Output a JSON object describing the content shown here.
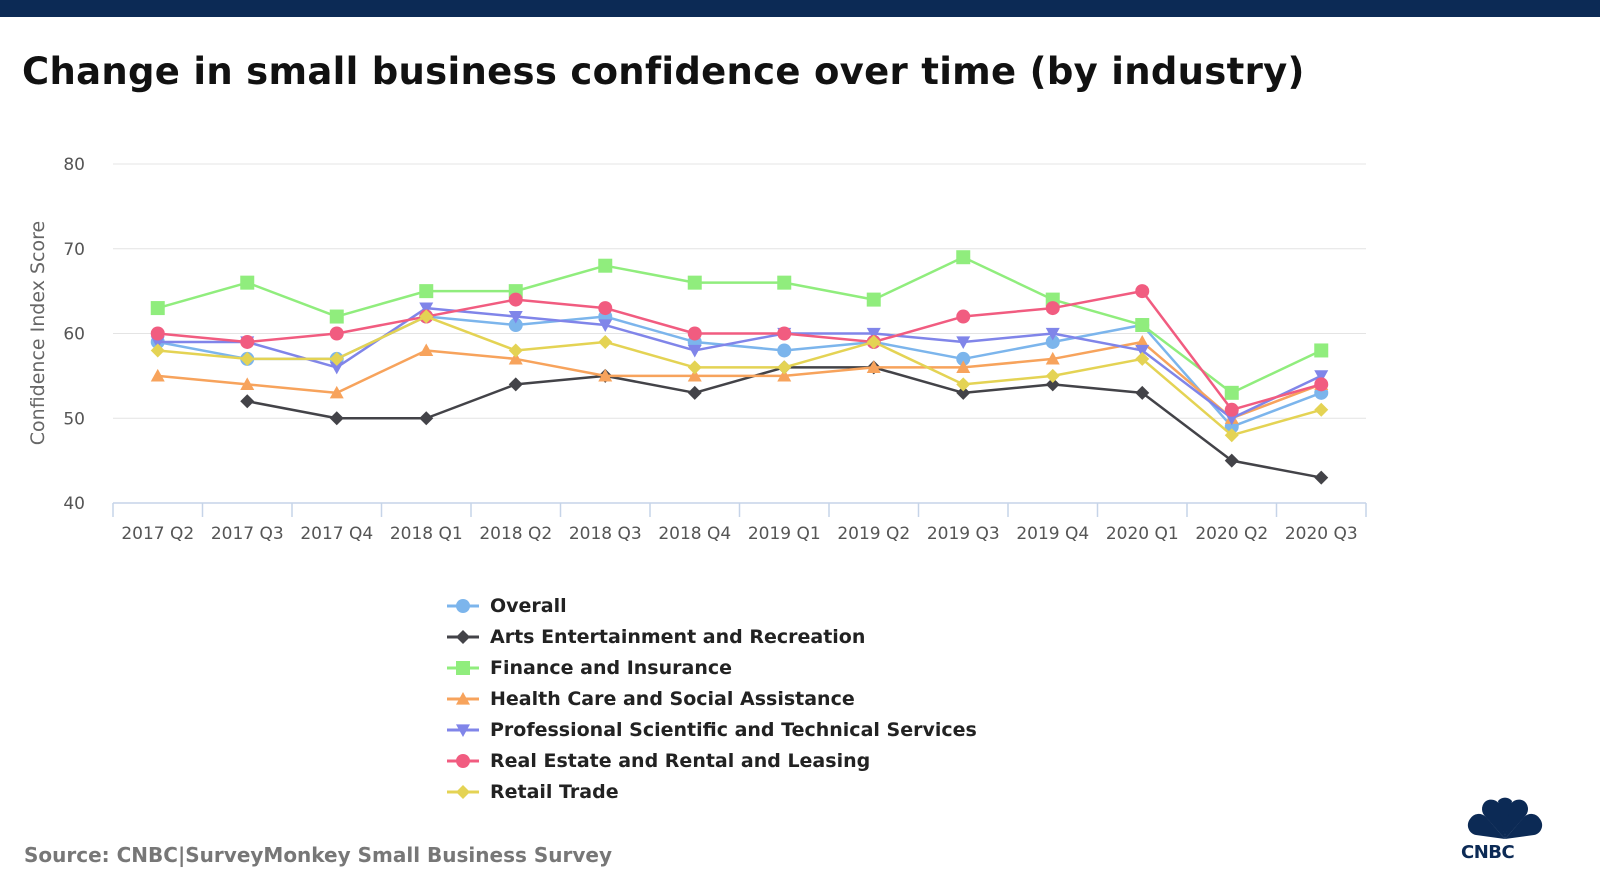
{
  "page": {
    "title": "Change in small business confidence over time (by industry)",
    "source": "Source: CNBC|SurveyMonkey Small Business Survey",
    "brand": {
      "logo_text": "CNBC",
      "color": "#0c2a55"
    }
  },
  "chart_data": {
    "type": "line",
    "title": "Change in small business confidence over time (by industry)",
    "xlabel": "",
    "ylabel": "Confidence Index Score",
    "ylim": [
      40,
      80
    ],
    "yticks": [
      "40",
      "50",
      "60",
      "70",
      "80"
    ],
    "grid": true,
    "legend_position": "bottom",
    "categories": [
      "2017 Q2",
      "2017 Q3",
      "2017 Q4",
      "2018 Q1",
      "2018 Q2",
      "2018 Q3",
      "2018 Q4",
      "2019 Q1",
      "2019 Q2",
      "2019 Q3",
      "2019 Q4",
      "2020 Q1",
      "2020 Q2",
      "2020 Q3"
    ],
    "series": [
      {
        "name": "Overall",
        "color": "#7cb5ec",
        "marker": "circle",
        "values": [
          59,
          57,
          57,
          62,
          61,
          62,
          59,
          58,
          59,
          57,
          59,
          61,
          49,
          53
        ]
      },
      {
        "name": "Arts Entertainment and Recreation",
        "color": "#434348",
        "marker": "diamond",
        "values": [
          null,
          52,
          50,
          50,
          54,
          55,
          53,
          56,
          56,
          53,
          54,
          53,
          45,
          43
        ]
      },
      {
        "name": "Finance and Insurance",
        "color": "#90ed7d",
        "marker": "square",
        "values": [
          63,
          66,
          62,
          65,
          65,
          68,
          66,
          66,
          64,
          69,
          64,
          61,
          53,
          58
        ]
      },
      {
        "name": "Health Care and Social Assistance",
        "color": "#f7a35c",
        "marker": "triangle",
        "values": [
          55,
          54,
          53,
          58,
          57,
          55,
          55,
          55,
          56,
          56,
          57,
          59,
          50,
          54
        ]
      },
      {
        "name": "Professional Scientific and Technical Services",
        "color": "#8085e9",
        "marker": "triangle-down",
        "values": [
          59,
          59,
          56,
          63,
          62,
          61,
          58,
          60,
          60,
          59,
          60,
          58,
          50,
          55
        ]
      },
      {
        "name": "Real Estate and Rental and Leasing",
        "color": "#f15c80",
        "marker": "circle",
        "values": [
          60,
          59,
          60,
          62,
          64,
          63,
          60,
          60,
          59,
          62,
          63,
          65,
          51,
          54
        ]
      },
      {
        "name": "Retail Trade",
        "color": "#e4d354",
        "marker": "diamond",
        "values": [
          58,
          57,
          57,
          62,
          58,
          59,
          56,
          56,
          59,
          54,
          55,
          57,
          48,
          51
        ]
      }
    ]
  }
}
